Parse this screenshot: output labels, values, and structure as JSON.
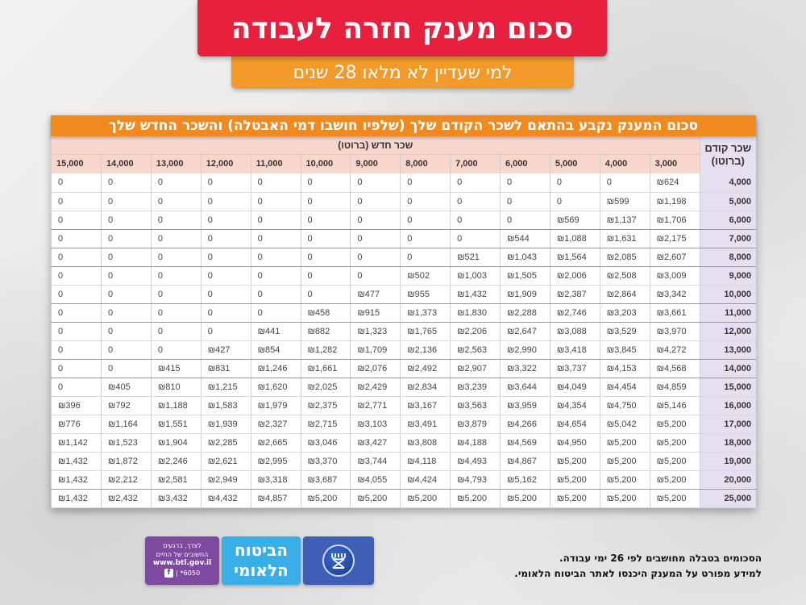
{
  "header": {
    "title": "סכום מענק חזרה לעבודה",
    "subtitle": "למי שעדיין לא מלאו 28 שנים"
  },
  "table": {
    "caption": "סכום המענק נקבע בהתאם לשכר הקודם שלך (שלפיו חושבו דמי האבטלה) והשכר החדש שלך",
    "corner_label_line1": "שכר קודם",
    "corner_label_line2": "(ברוטו)",
    "new_salary_label": "שכר חדש (ברוטו)",
    "columns": [
      "3,000",
      "4,000",
      "5,000",
      "6,000",
      "7,000",
      "8,000",
      "9,000",
      "10,000",
      "11,000",
      "12,000",
      "13,000",
      "14,000",
      "15,000"
    ],
    "rows": [
      {
        "prev": "4,000",
        "values": [
          "₪624",
          "0",
          "0",
          "0",
          "0",
          "0",
          "0",
          "0",
          "0",
          "0",
          "0",
          "0",
          "0"
        ]
      },
      {
        "prev": "5,000",
        "values": [
          "₪1,198",
          "₪599",
          "0",
          "0",
          "0",
          "0",
          "0",
          "0",
          "0",
          "0",
          "0",
          "0",
          "0"
        ]
      },
      {
        "prev": "6,000",
        "values": [
          "₪1,706",
          "₪1,137",
          "₪569",
          "0",
          "0",
          "0",
          "0",
          "0",
          "0",
          "0",
          "0",
          "0",
          "0"
        ]
      },
      {
        "prev": "7,000",
        "values": [
          "₪2,175",
          "₪1,631",
          "₪1,088",
          "₪544",
          "0",
          "0",
          "0",
          "0",
          "0",
          "0",
          "0",
          "0",
          "0"
        ]
      },
      {
        "prev": "8,000",
        "values": [
          "₪2,607",
          "₪2,085",
          "₪1,564",
          "₪1,043",
          "₪521",
          "0",
          "0",
          "0",
          "0",
          "0",
          "0",
          "0",
          "0"
        ]
      },
      {
        "prev": "9,000",
        "values": [
          "₪3,009",
          "₪2,508",
          "₪2,006",
          "₪1,505",
          "₪1,003",
          "₪502",
          "0",
          "0",
          "0",
          "0",
          "0",
          "0",
          "0"
        ]
      },
      {
        "prev": "10,000",
        "values": [
          "₪3,342",
          "₪2,864",
          "₪2,387",
          "₪1,909",
          "₪1,432",
          "₪955",
          "₪477",
          "0",
          "0",
          "0",
          "0",
          "0",
          "0"
        ]
      },
      {
        "prev": "11,000",
        "values": [
          "₪3,661",
          "₪3,203",
          "₪2,746",
          "₪2,288",
          "₪1,830",
          "₪1,373",
          "₪915",
          "₪458",
          "0",
          "0",
          "0",
          "0",
          "0"
        ]
      },
      {
        "prev": "12,000",
        "values": [
          "₪3,970",
          "₪3,529",
          "₪3,088",
          "₪2,647",
          "₪2,206",
          "₪1,765",
          "₪1,323",
          "₪882",
          "₪441",
          "0",
          "0",
          "0",
          "0"
        ]
      },
      {
        "prev": "13,000",
        "values": [
          "₪4,272",
          "₪3,845",
          "₪3,418",
          "₪2,990",
          "₪2,563",
          "₪2,136",
          "₪1,709",
          "₪1,282",
          "₪854",
          "₪427",
          "0",
          "0",
          "0"
        ]
      },
      {
        "prev": "14,000",
        "values": [
          "₪4,568",
          "₪4,153",
          "₪3,737",
          "₪3,322",
          "₪2,907",
          "₪2,492",
          "₪2,076",
          "₪1,661",
          "₪1,246",
          "₪831",
          "₪415",
          "0",
          "0"
        ]
      },
      {
        "prev": "15,000",
        "values": [
          "₪4,859",
          "₪4,454",
          "₪4,049",
          "₪3,644",
          "₪3,239",
          "₪2,834",
          "₪2,429",
          "₪2,025",
          "₪1,620",
          "₪1,215",
          "₪810",
          "₪405",
          "0"
        ]
      },
      {
        "prev": "16,000",
        "values": [
          "₪5,146",
          "₪4,750",
          "₪4,354",
          "₪3,959",
          "₪3,563",
          "₪3,167",
          "₪2,771",
          "₪2,375",
          "₪1,979",
          "₪1,583",
          "₪1,188",
          "₪792",
          "₪396"
        ]
      },
      {
        "prev": "17,000",
        "values": [
          "₪5,200",
          "₪5,042",
          "₪4,654",
          "₪4,266",
          "₪3,879",
          "₪3,491",
          "₪3,103",
          "₪2,715",
          "₪2,327",
          "₪1,939",
          "₪1,551",
          "₪1,164",
          "₪776"
        ]
      },
      {
        "prev": "18,000",
        "values": [
          "₪5,200",
          "₪5,200",
          "₪4,950",
          "₪4,569",
          "₪4,188",
          "₪3,808",
          "₪3,427",
          "₪3,046",
          "₪2,665",
          "₪2,285",
          "₪1,904",
          "₪1,523",
          "₪1,142"
        ]
      },
      {
        "prev": "19,000",
        "values": [
          "₪5,200",
          "₪5,200",
          "₪5,200",
          "₪4,867",
          "₪4,493",
          "₪4,118",
          "₪3,744",
          "₪3,370",
          "₪2,995",
          "₪2,621",
          "₪2,246",
          "₪1,872",
          "₪1,432"
        ]
      },
      {
        "prev": "20,000",
        "values": [
          "₪5,200",
          "₪5,200",
          "₪5,200",
          "₪5,162",
          "₪4,793",
          "₪4,424",
          "₪4,055",
          "₪3,687",
          "₪3,318",
          "₪2,949",
          "₪2,581",
          "₪2,212",
          "₪1,432"
        ]
      },
      {
        "prev": "25,000",
        "values": [
          "₪5,200",
          "₪5,200",
          "₪5,200",
          "₪5,200",
          "₪5,200",
          "₪5,200",
          "₪5,200",
          "₪5,200",
          "₪4,857",
          "₪4,432",
          "₪3,432",
          "₪2,432",
          "₪1,432"
        ]
      }
    ]
  },
  "footer": {
    "note_line1": "הסכומים בטבלה מחושבים לפי 26 ימי עבודה.",
    "note_line2": "למידע מפורט על המענק היכנסו לאתר הביטוח הלאומי.",
    "logo": {
      "name_line1": "הביטוח",
      "name_line2": "הלאומי",
      "emblem_icon": "btl-emblem-icon",
      "tagline_line1": "לצדך, ברגעים",
      "tagline_line2": "החשובים של החיים",
      "url": "www.btl.gov.il",
      "phone": "*6050",
      "facebook_icon": "f"
    }
  },
  "colors": {
    "title_bg": "#e8203e",
    "subtitle_bg": "#f39a2b",
    "caption_bg": "#f08a1e",
    "header_bg": "#f9d6cc",
    "rowhdr_bg": "#e6dff0",
    "logo_purple": "#7d4aa0",
    "logo_cyan": "#3aaee6",
    "logo_blue": "#3e5fb5"
  }
}
